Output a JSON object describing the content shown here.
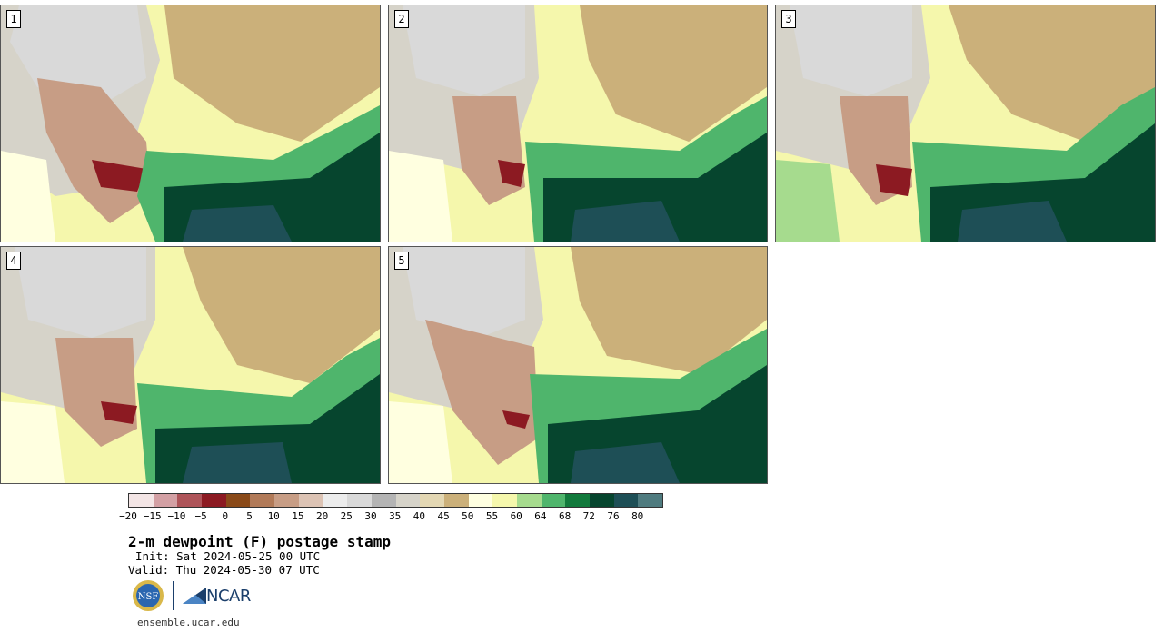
{
  "panels": [
    {
      "label": "1"
    },
    {
      "label": "2"
    },
    {
      "label": "3"
    },
    {
      "label": "4"
    },
    {
      "label": "5"
    }
  ],
  "colorbar": {
    "ticks": [
      "−20",
      "−15",
      "−10",
      "−5",
      "0",
      "5",
      "10",
      "15",
      "20",
      "25",
      "30",
      "35",
      "40",
      "45",
      "50",
      "55",
      "60",
      "64",
      "68",
      "72",
      "76",
      "80"
    ],
    "colors": [
      "#f3e5e5",
      "#d3a0a4",
      "#ae5459",
      "#8c1a22",
      "#8a4a19",
      "#b17a58",
      "#c79d85",
      "#dcc3b4",
      "#ececec",
      "#d9d9d9",
      "#b4b4b4",
      "#d6d3c9",
      "#e3d7b3",
      "#cbb07a",
      "#ffffe0",
      "#f5f7ac",
      "#a6db8e",
      "#4fb56c",
      "#127a3c",
      "#06452e",
      "#1e4f56",
      "#4f7b7f"
    ]
  },
  "title": "2-m dewpoint (F) postage stamp",
  "init": "Init: Sat 2024-05-25 00 UTC",
  "valid": "Valid: Thu 2024-05-30 07 UTC",
  "logos": {
    "nsf": "NSF",
    "ncar": "NCAR"
  },
  "url": "ensemble.ucar.edu"
}
